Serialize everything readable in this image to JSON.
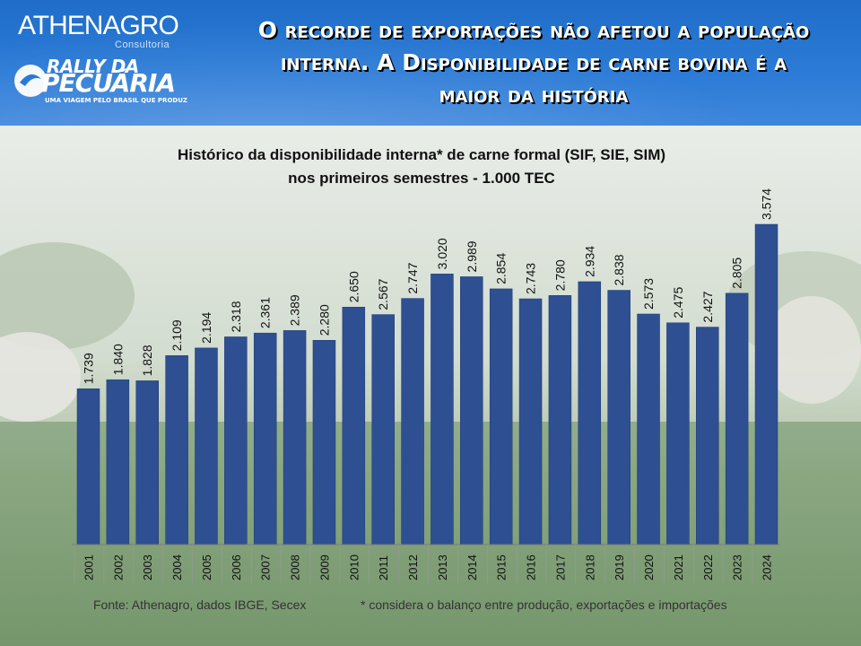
{
  "header": {
    "brand_main": "ATHENAGRO",
    "brand_sub": "Consultoria",
    "rally_line1": "RALLY DA",
    "rally_line2": "PECUÁRIA",
    "rally_tagline": "UMA VIAGEM PELO BRASIL QUE PRODUZ",
    "headline": [
      "O recorde de exportações não afetou a população",
      "interna. A Disponibilidade de carne bovina é a",
      "maior da história"
    ]
  },
  "footer": {
    "source": "Fonte: Athenagro, dados IBGE, Secex",
    "note": "* considera o balanço entre produção, exportações e importações"
  },
  "colors": {
    "header_blue": "#2a7ad6",
    "bar": "#2e4f92",
    "bar_border": "#1e3a72"
  },
  "chart_data": {
    "type": "bar",
    "title": "Histórico da disponibilidade interna* de carne formal (SIF, SIE, SIM) nos primeiros semestres - 1.000 TEC",
    "title_lines": [
      "Histórico da disponibilidade interna*  de carne formal (SIF, SIE, SIM)",
      "nos primeiros semestres - 1.000 TEC"
    ],
    "categories": [
      "2001",
      "2002",
      "2003",
      "2004",
      "2005",
      "2006",
      "2007",
      "2008",
      "2009",
      "2010",
      "2011",
      "2012",
      "2013",
      "2014",
      "2015",
      "2016",
      "2017",
      "2018",
      "2019",
      "2020",
      "2021",
      "2022",
      "2023",
      "2024"
    ],
    "values": [
      1739,
      1840,
      1828,
      2109,
      2194,
      2318,
      2361,
      2389,
      2280,
      2650,
      2567,
      2747,
      3020,
      2989,
      2854,
      2743,
      2780,
      2934,
      2838,
      2573,
      2475,
      2427,
      2805,
      3574
    ],
    "value_labels": [
      "1.739",
      "1.840",
      "1.828",
      "2.109",
      "2.194",
      "2.318",
      "2.361",
      "2.389",
      "2.280",
      "2.650",
      "2.567",
      "2.747",
      "3.020",
      "2.989",
      "2.854",
      "2.743",
      "2.780",
      "2.934",
      "2.838",
      "2.573",
      "2.475",
      "2.427",
      "2.805",
      "3.574"
    ],
    "ylim": [
      0,
      3574
    ],
    "xlabel": "",
    "ylabel": "",
    "grid": false,
    "legend": "none"
  }
}
